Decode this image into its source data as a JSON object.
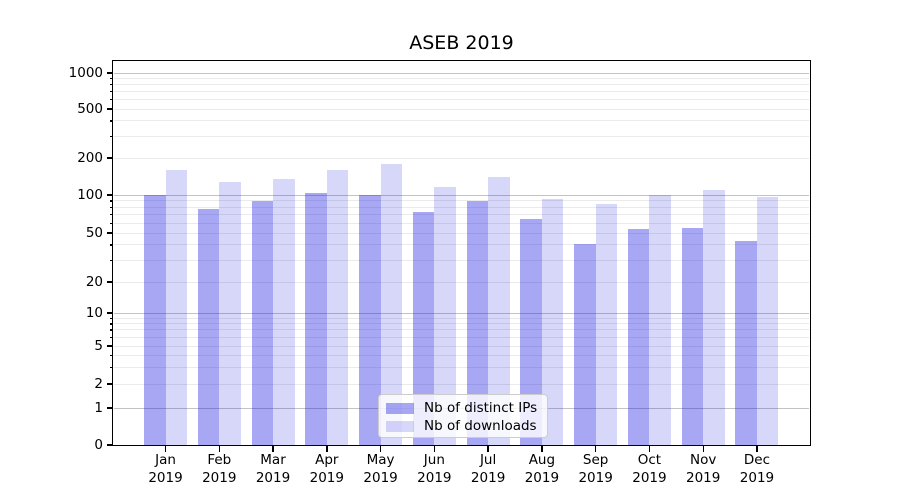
{
  "figure": {
    "title": "ASEB 2019"
  },
  "axes": {
    "y_ticks": [
      1000,
      500,
      200,
      100,
      50,
      20,
      10,
      5,
      2,
      1,
      0
    ],
    "y_tick_labels": [
      "1000",
      "500",
      "200",
      "100",
      "50",
      "20",
      "10",
      "5",
      "2",
      "1",
      "0"
    ],
    "y_minor_gridline_values": [
      2,
      3,
      4,
      5,
      6,
      7,
      8,
      9,
      20,
      30,
      40,
      50,
      60,
      70,
      80,
      90,
      200,
      300,
      400,
      500,
      600,
      700,
      800,
      900
    ],
    "y_major_gridline_values": [
      1,
      10,
      100,
      1000
    ],
    "x_tick_labels": [
      {
        "month": "Jan",
        "year": "2019"
      },
      {
        "month": "Feb",
        "year": "2019"
      },
      {
        "month": "Mar",
        "year": "2019"
      },
      {
        "month": "Apr",
        "year": "2019"
      },
      {
        "month": "May",
        "year": "2019"
      },
      {
        "month": "Jun",
        "year": "2019"
      },
      {
        "month": "Jul",
        "year": "2019"
      },
      {
        "month": "Aug",
        "year": "2019"
      },
      {
        "month": "Sep",
        "year": "2019"
      },
      {
        "month": "Oct",
        "year": "2019"
      },
      {
        "month": "Nov",
        "year": "2019"
      },
      {
        "month": "Dec",
        "year": "2019"
      }
    ]
  },
  "legend": {
    "items": [
      {
        "label": "Nb of distinct IPs",
        "color": "rgba(15,15,225,0.37)"
      },
      {
        "label": "Nb of downloads",
        "color": "rgba(15,15,225,0.165)"
      }
    ]
  },
  "colors": {
    "bar_distinct_ips": "rgba(15,15,225,0.37)",
    "bar_downloads": "rgba(15,15,225,0.165)",
    "grid_major": "#c3c3c3",
    "grid_minor": "#eaeaea",
    "spine": "#000000",
    "text": "#000000",
    "legend_bg": "rgba(255,255,255,0.8)",
    "legend_border": "#cccccc"
  },
  "chart_data": {
    "type": "bar",
    "title": "ASEB 2019",
    "categories": [
      "Jan 2019",
      "Feb 2019",
      "Mar 2019",
      "Apr 2019",
      "May 2019",
      "Jun 2019",
      "Jul 2019",
      "Aug 2019",
      "Sep 2019",
      "Oct 2019",
      "Nov 2019",
      "Dec 2019"
    ],
    "series": [
      {
        "name": "Nb of distinct IPs",
        "values": [
          100,
          78,
          90,
          103,
          100,
          74,
          89,
          64,
          41,
          54,
          55,
          43
        ]
      },
      {
        "name": "Nb of downloads",
        "values": [
          160,
          128,
          134,
          161,
          178,
          116,
          139,
          93,
          85,
          100,
          110,
          96
        ]
      }
    ],
    "xlabel": "",
    "ylabel": "",
    "yscale": "symlog (log above 1, linear 0-1, 0 shown at baseline)",
    "y_ticks": [
      1000,
      500,
      200,
      100,
      50,
      20,
      10,
      5,
      2,
      1,
      0
    ],
    "ylim": [
      0,
      1250
    ],
    "grid": "both major and minor horizontal gridlines",
    "legend_position": "lower center inside plot"
  }
}
